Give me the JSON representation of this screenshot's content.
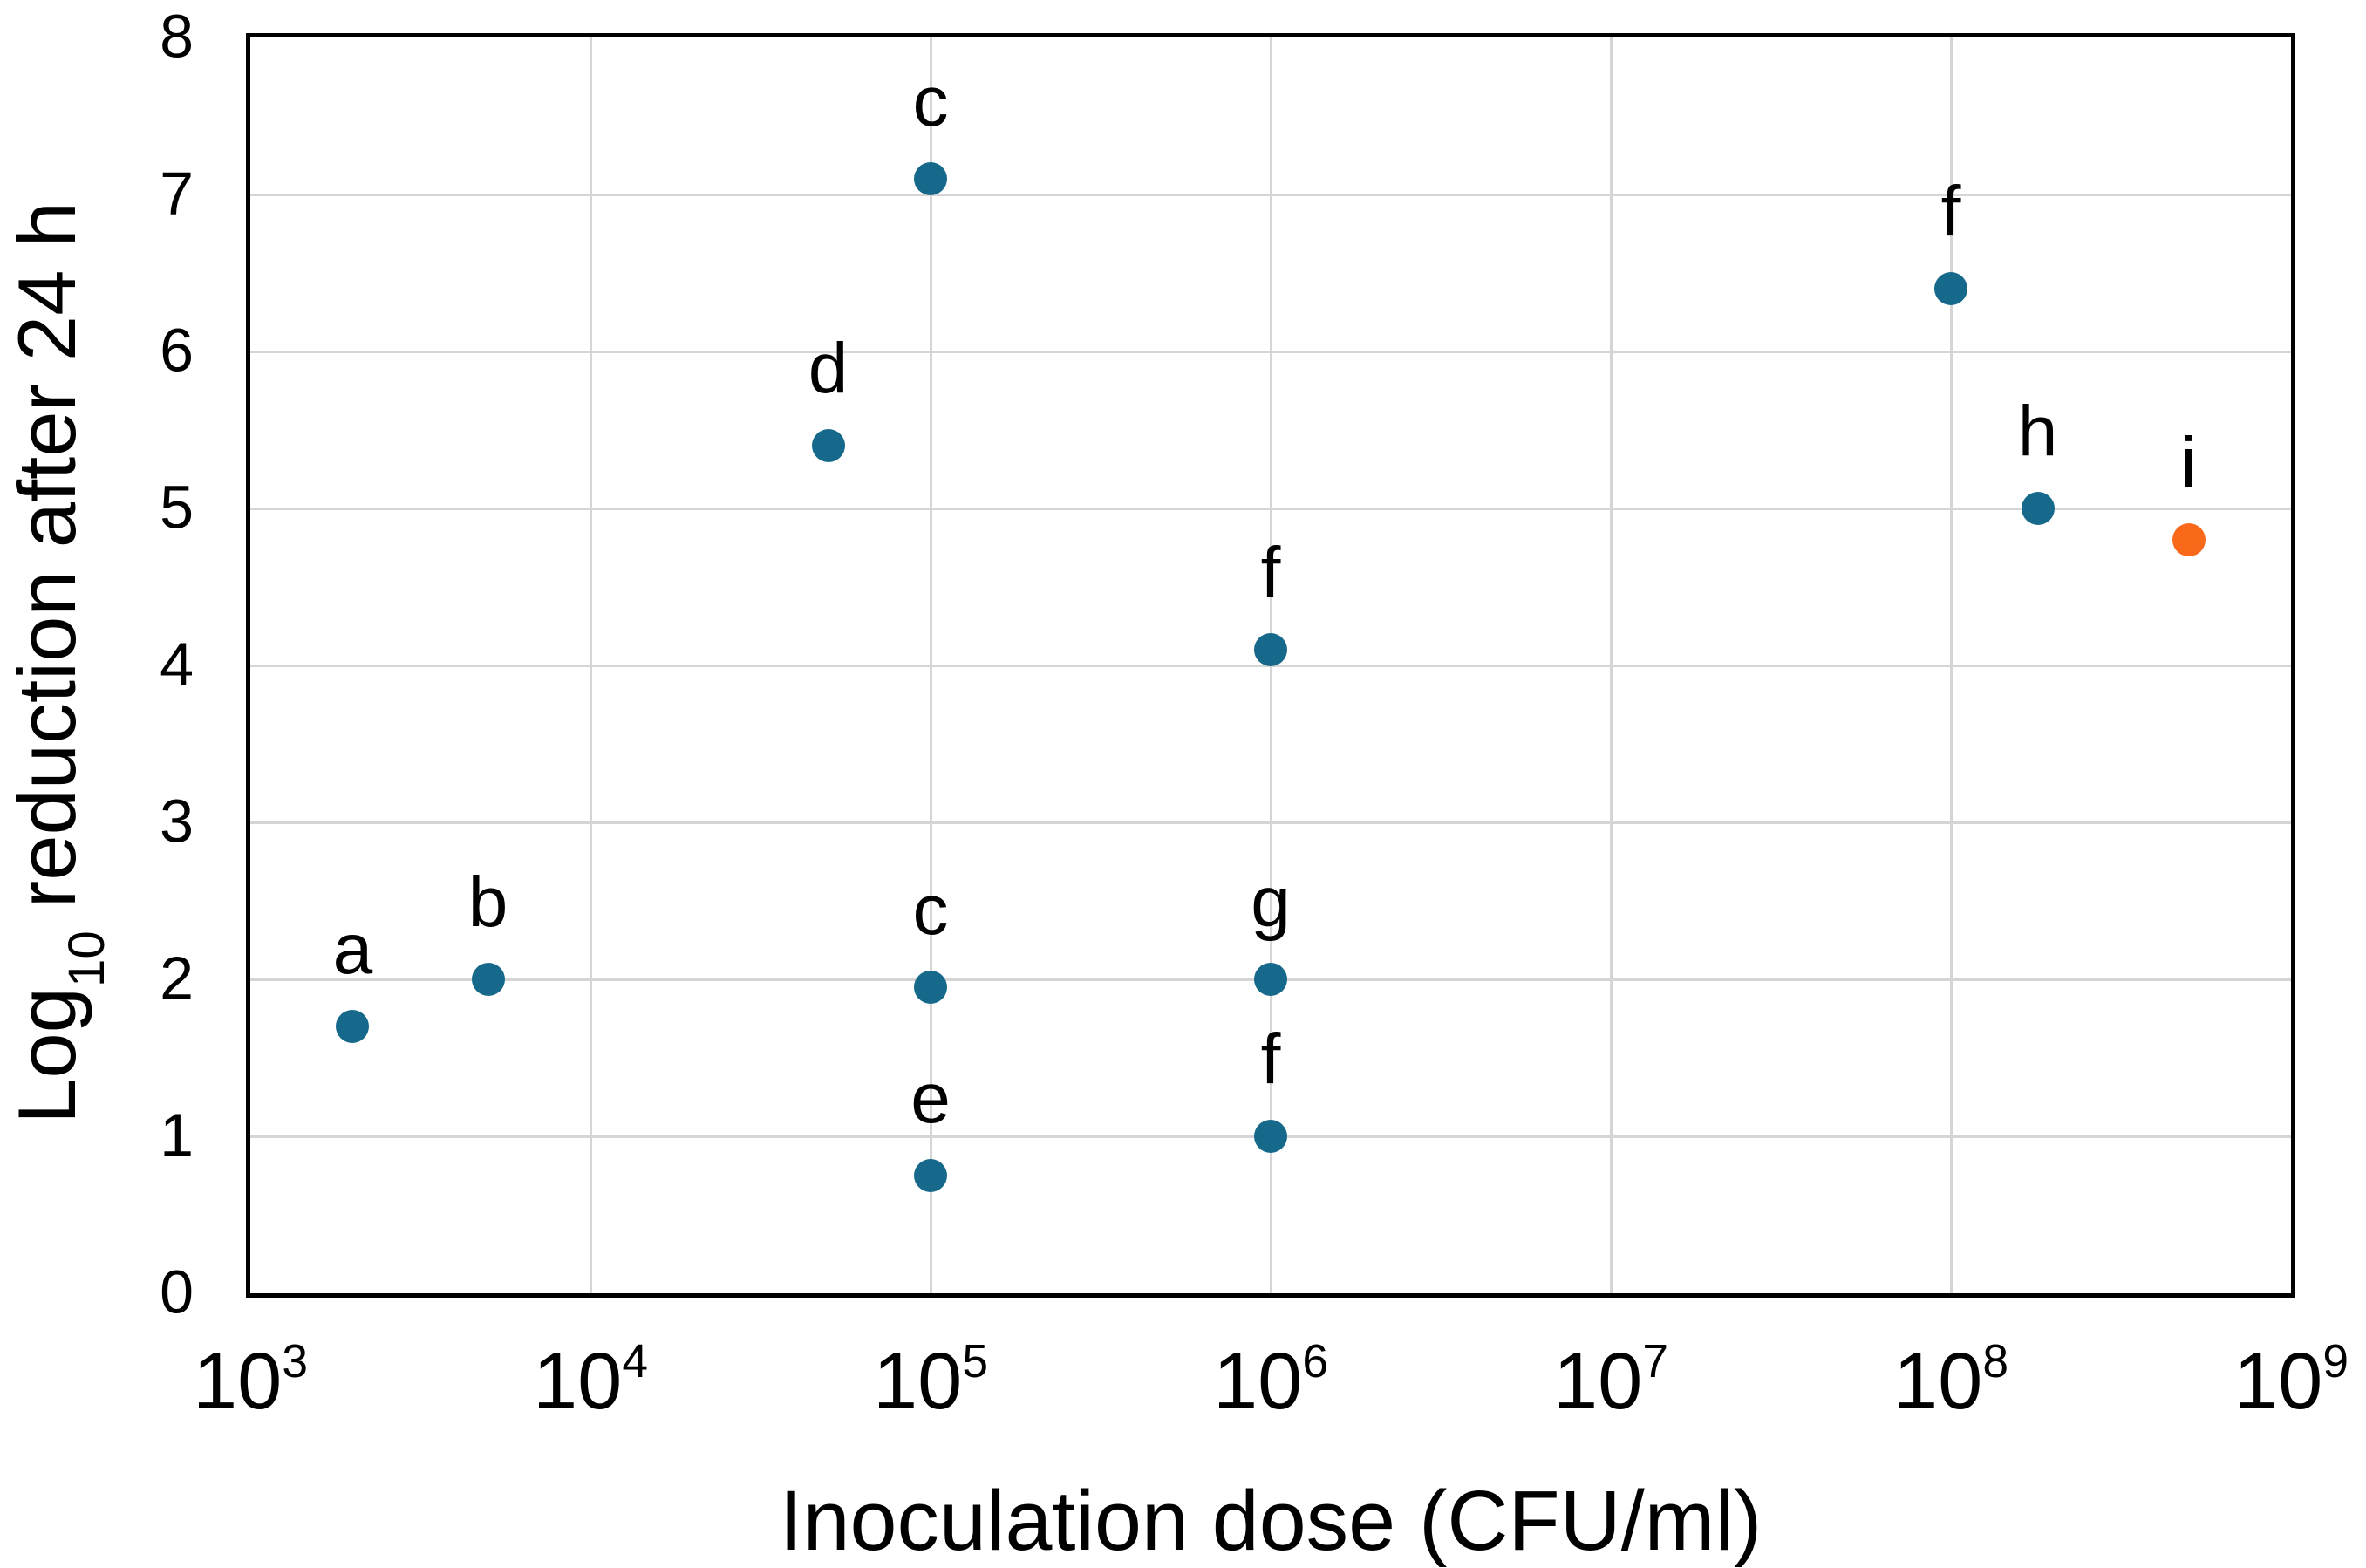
{
  "chart_data": {
    "type": "scatter",
    "title": "",
    "xlabel": "Inoculation dose (CFU/ml)",
    "ylabel": "Log10 reduction after 24 h",
    "ylabel_parts": {
      "prefix": "Log",
      "subscript": "10",
      "suffix": " reduction after 24 h"
    },
    "x_scale": "log10",
    "x_tick_base": "10",
    "x_tick_exponents": [
      3,
      4,
      5,
      6,
      7,
      8,
      9
    ],
    "xlim_log": [
      3,
      9
    ],
    "y_ticks": [
      0,
      1,
      2,
      3,
      4,
      5,
      6,
      7,
      8
    ],
    "ylim": [
      0,
      8
    ],
    "grid": true,
    "legend": "none",
    "series": [
      {
        "name": "teal-points",
        "color": "#16698A",
        "points": [
          {
            "label": "a",
            "dose": 2000,
            "log_reduction": 1.7
          },
          {
            "label": "b",
            "dose": 5000,
            "log_reduction": 2.0
          },
          {
            "label": "d",
            "dose": 50000,
            "log_reduction": 5.4
          },
          {
            "label": "c",
            "dose": 100000,
            "log_reduction": 7.1
          },
          {
            "label": "c",
            "dose": 100000,
            "log_reduction": 1.95
          },
          {
            "label": "e",
            "dose": 100000,
            "log_reduction": 0.75
          },
          {
            "label": "f",
            "dose": 1000000,
            "log_reduction": 4.1
          },
          {
            "label": "g",
            "dose": 1000000,
            "log_reduction": 2.0
          },
          {
            "label": "f",
            "dose": 1000000,
            "log_reduction": 1.0
          },
          {
            "label": "f",
            "dose": 100000000,
            "log_reduction": 6.4
          },
          {
            "label": "h",
            "dose": 180000000,
            "log_reduction": 5.0
          }
        ]
      },
      {
        "name": "orange-points",
        "color": "#FA691A",
        "points": [
          {
            "label": "i",
            "dose": 500000000,
            "log_reduction": 4.8
          }
        ]
      }
    ]
  },
  "colors": {
    "background": "#FFFFFF",
    "axis": "#000000",
    "grid": "#D5D5D5",
    "text": "#000000",
    "point_teal": "#16698A",
    "point_orange": "#FA691A"
  }
}
